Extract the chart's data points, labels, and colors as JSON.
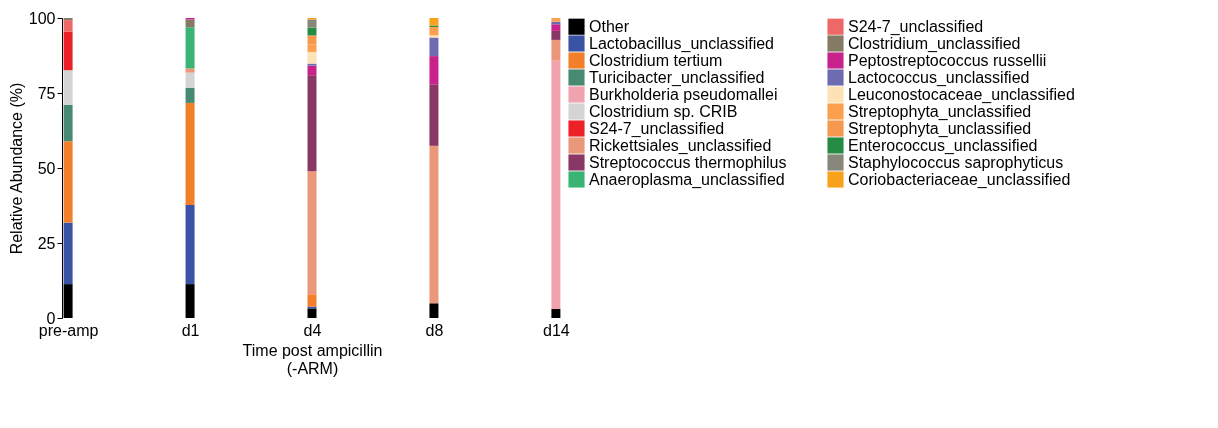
{
  "chart_data": {
    "type": "bar",
    "stacked": true,
    "xlabel": "Time post ampicillin\n(-ARM)",
    "ylabel": "Relative Abundance (%)",
    "categories": [
      "pre-amp",
      "d1",
      "d4",
      "d8",
      "d14"
    ],
    "ylim": [
      0,
      100
    ],
    "yticks": [
      0,
      25,
      50,
      75,
      100
    ],
    "grid": false,
    "legend": "right",
    "series": [
      {
        "name": "Other",
        "color": "#000000",
        "values": [
          11.3,
          11.3,
          3.2,
          4.9,
          3.0
        ]
      },
      {
        "name": "Lactobacillus_unclassified",
        "color": "#3a53a4",
        "values": [
          20.5,
          26.4,
          0.6,
          0,
          0
        ]
      },
      {
        "name": "Clostridium tertium",
        "color": "#f47f2b",
        "values": [
          27.1,
          34.0,
          4.1,
          0,
          0
        ]
      },
      {
        "name": "Turicibacter_unclassified",
        "color": "#468a72",
        "values": [
          12.2,
          5.0,
          0,
          0,
          0
        ]
      },
      {
        "name": "Burkholderia pseudomallei",
        "color": "#f0a3ae",
        "values": [
          0,
          0,
          0,
          0,
          82.8
        ]
      },
      {
        "name": "Clostridium sp. CRIB",
        "color": "#d4d4d4",
        "values": [
          11.5,
          5.1,
          0,
          0,
          0
        ]
      },
      {
        "name": "S24-7_unclassified",
        "color": "#ee2027",
        "values": [
          12.8,
          0,
          0,
          0,
          0
        ]
      },
      {
        "name": "Rickettsiales_unclassified",
        "color": "#ea977a",
        "values": [
          0,
          1.4,
          41.0,
          52.5,
          6.9
        ]
      },
      {
        "name": "Streptococcus thermophilus",
        "color": "#8a3765",
        "values": [
          0,
          0,
          32.0,
          20.5,
          3.0
        ]
      },
      {
        "name": "Anaeroplasma_unclassified",
        "color": "#3ab373",
        "values": [
          0,
          13.7,
          0,
          0,
          0
        ]
      },
      {
        "name": "S24-7_unclassified",
        "color": "#ef6868",
        "values": [
          3.9,
          0,
          0,
          0,
          0
        ]
      },
      {
        "name": "Clostridium_unclassified",
        "color": "#857a63",
        "values": [
          0.7,
          2.6,
          0,
          0,
          0
        ]
      },
      {
        "name": "Peptostreptococcus russellii",
        "color": "#c8238a",
        "values": [
          0,
          0.5,
          3.2,
          9.4,
          2.2
        ]
      },
      {
        "name": "Lactococcus_unclassified",
        "color": "#6f6bb0",
        "values": [
          0,
          0,
          0.7,
          6.2,
          0.9
        ]
      },
      {
        "name": "Leuconostocaceae_unclassified",
        "color": "#fde2b5",
        "values": [
          0,
          0,
          3.9,
          0.7,
          0
        ]
      },
      {
        "name": "Streptophyta_unclassified",
        "color": "#faa04e",
        "values": [
          0,
          0,
          2.5,
          2.8,
          1.2
        ]
      },
      {
        "name": "Streptophyta_unclassified",
        "color": "#f4994e",
        "values": [
          0,
          0,
          3.0,
          0,
          0
        ]
      },
      {
        "name": "Enterococcus_unclassified",
        "color": "#268c44",
        "values": [
          0,
          0,
          2.6,
          0.5,
          0
        ]
      },
      {
        "name": "Staphylococcus saprophyticus",
        "color": "#86867a",
        "values": [
          0,
          0,
          2.7,
          0,
          0
        ]
      },
      {
        "name": "Coriobacteriaceae_unclassified",
        "color": "#f8a21c",
        "values": [
          0,
          0,
          0.5,
          2.5,
          0
        ]
      }
    ]
  }
}
